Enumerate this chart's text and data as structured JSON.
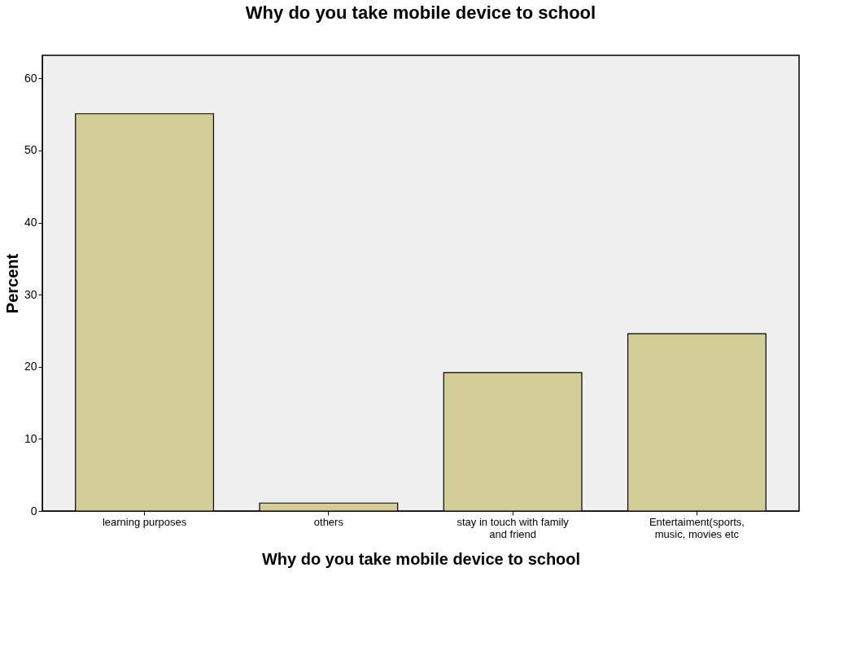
{
  "chart_data": {
    "type": "bar",
    "title": "Why do you take mobile device to school",
    "xlabel": "Why do you take mobile device to school",
    "ylabel": "Percent",
    "categories": [
      "learning purposes",
      "others",
      "stay in touch with family and friend",
      "Entertaiment(sports, music, movies etc"
    ],
    "values": [
      55.1,
      1.1,
      19.2,
      24.6
    ],
    "color": "#d3ce97",
    "ylim": [
      0,
      63.2
    ],
    "yticks": [
      0,
      10,
      20,
      30,
      40,
      50,
      60
    ],
    "grid": false
  }
}
